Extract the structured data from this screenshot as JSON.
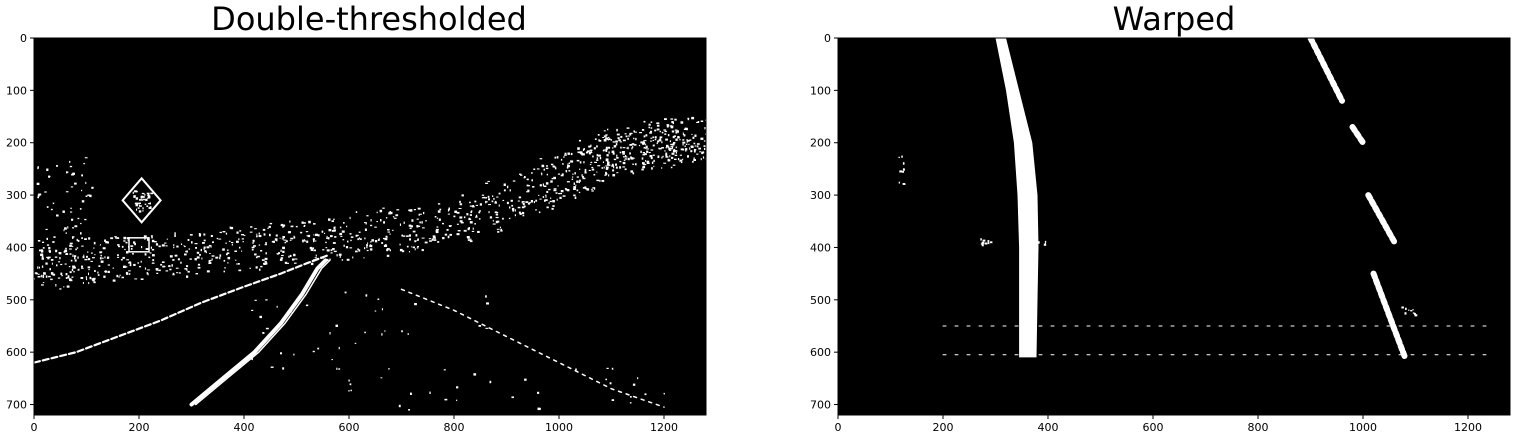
{
  "chart_data": [
    {
      "type": "image",
      "title": "Double-thresholded",
      "xlabel": "",
      "ylabel": "",
      "xlim": [
        0,
        1280
      ],
      "ylim": [
        720,
        0
      ],
      "xticks": [
        0,
        200,
        400,
        600,
        800,
        1000,
        1200
      ],
      "yticks": [
        0,
        100,
        200,
        300,
        400,
        500,
        600,
        700
      ],
      "background": "#000000",
      "foreground": "#ffffff",
      "features": {
        "left_lane_line": [
          [
            0,
            620
          ],
          [
            80,
            600
          ],
          [
            160,
            570
          ],
          [
            240,
            540
          ],
          [
            320,
            505
          ],
          [
            400,
            475
          ],
          [
            470,
            450
          ],
          [
            520,
            430
          ],
          [
            560,
            415
          ]
        ],
        "right_lane_line": [
          [
            300,
            700
          ],
          [
            360,
            650
          ],
          [
            420,
            600
          ],
          [
            470,
            545
          ],
          [
            510,
            490
          ],
          [
            540,
            440
          ],
          [
            555,
            425
          ]
        ],
        "road_right_edge": [
          [
            700,
            480
          ],
          [
            800,
            520
          ],
          [
            900,
            570
          ],
          [
            1000,
            620
          ],
          [
            1100,
            670
          ],
          [
            1200,
            705
          ]
        ],
        "horizon_band": [
          [
            0,
            420
          ],
          [
            200,
            420
          ],
          [
            400,
            400
          ],
          [
            600,
            380
          ],
          [
            800,
            350
          ],
          [
            1000,
            270
          ],
          [
            1100,
            220
          ],
          [
            1200,
            200
          ],
          [
            1280,
            190
          ]
        ],
        "sign_diamond_center": [
          205,
          310
        ],
        "sign_plate_center": [
          200,
          395
        ]
      }
    },
    {
      "type": "image",
      "title": "Warped",
      "xlabel": "",
      "ylabel": "",
      "xlim": [
        0,
        1280
      ],
      "ylim": [
        720,
        0
      ],
      "xticks": [
        0,
        200,
        400,
        600,
        800,
        1000,
        1200
      ],
      "yticks": [
        0,
        100,
        200,
        300,
        400,
        500,
        600,
        700
      ],
      "background": "#000000",
      "foreground": "#ffffff",
      "features": {
        "left_lane_left_edge": [
          [
            300,
            0
          ],
          [
            320,
            100
          ],
          [
            335,
            200
          ],
          [
            342,
            300
          ],
          [
            345,
            400
          ],
          [
            345,
            500
          ],
          [
            345,
            610
          ]
        ],
        "left_lane_right_edge": [
          [
            320,
            0
          ],
          [
            345,
            100
          ],
          [
            370,
            200
          ],
          [
            380,
            300
          ],
          [
            382,
            400
          ],
          [
            380,
            500
          ],
          [
            378,
            610
          ]
        ],
        "right_lane_segments": [
          [
            [
              900,
              0
            ],
            [
              960,
              120
            ]
          ],
          [
            [
              980,
              170
            ],
            [
              1000,
              200
            ]
          ],
          [
            [
              1010,
              300
            ],
            [
              1060,
              390
            ]
          ],
          [
            [
              1020,
              450
            ],
            [
              1080,
              610
            ]
          ]
        ],
        "horizontal_noise_y": [
          550,
          605
        ]
      }
    }
  ]
}
